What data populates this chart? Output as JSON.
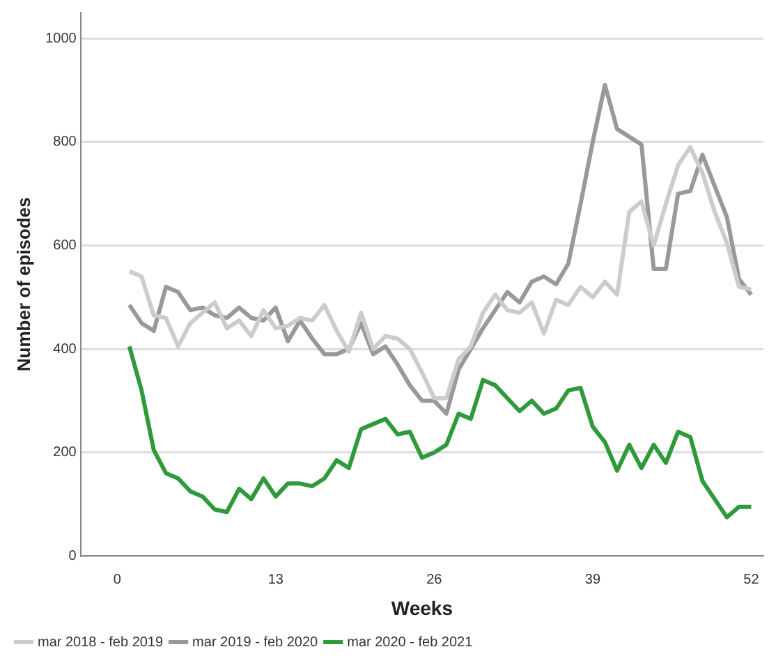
{
  "chart_data": {
    "type": "line",
    "xlabel": "Weeks",
    "ylabel": "Number of episodes",
    "x": [
      1,
      2,
      3,
      4,
      5,
      6,
      7,
      8,
      9,
      10,
      11,
      12,
      13,
      14,
      15,
      16,
      17,
      18,
      19,
      20,
      21,
      22,
      23,
      24,
      25,
      26,
      27,
      28,
      29,
      30,
      31,
      32,
      33,
      34,
      35,
      36,
      37,
      38,
      39,
      40,
      41,
      42,
      43,
      44,
      45,
      46,
      47,
      48,
      49,
      50,
      51,
      52
    ],
    "series": [
      {
        "name": "mar 2018 - feb 2019",
        "color": "#cccccc",
        "values": [
          550,
          540,
          465,
          460,
          405,
          450,
          470,
          490,
          440,
          455,
          425,
          475,
          440,
          445,
          460,
          455,
          485,
          435,
          395,
          470,
          400,
          425,
          420,
          400,
          355,
          305,
          305,
          380,
          405,
          470,
          505,
          475,
          470,
          490,
          430,
          495,
          485,
          520,
          500,
          530,
          505,
          665,
          685,
          600,
          680,
          755,
          790,
          740,
          665,
          605,
          520,
          515
        ]
      },
      {
        "name": "mar 2019 - feb 2020",
        "color": "#999999",
        "values": [
          485,
          450,
          435,
          520,
          510,
          475,
          480,
          465,
          460,
          480,
          460,
          455,
          480,
          415,
          455,
          420,
          390,
          390,
          400,
          450,
          390,
          405,
          370,
          330,
          300,
          300,
          275,
          360,
          400,
          440,
          475,
          510,
          490,
          530,
          540,
          525,
          565,
          680,
          800,
          910,
          825,
          810,
          795,
          555,
          555,
          700,
          705,
          775,
          715,
          655,
          535,
          505
        ]
      },
      {
        "name": "mar 2020 - feb 2021",
        "color": "#2e9a3a",
        "values": [
          405,
          320,
          205,
          160,
          150,
          125,
          115,
          90,
          85,
          130,
          110,
          150,
          115,
          140,
          140,
          135,
          150,
          185,
          170,
          245,
          255,
          265,
          235,
          240,
          190,
          200,
          215,
          275,
          265,
          340,
          330,
          305,
          280,
          300,
          275,
          285,
          320,
          325,
          250,
          220,
          165,
          215,
          170,
          215,
          180,
          240,
          230,
          145,
          110,
          75,
          95,
          95
        ]
      }
    ],
    "xlim": [
      -3,
      53
    ],
    "xticks": [
      0,
      13,
      26,
      39,
      52
    ],
    "ylim": [
      0,
      1050
    ],
    "yticks": [
      0,
      200,
      400,
      600,
      800,
      1000
    ],
    "grid": "y",
    "legend": "bottom left",
    "marker": "none",
    "line_style": "solid"
  }
}
